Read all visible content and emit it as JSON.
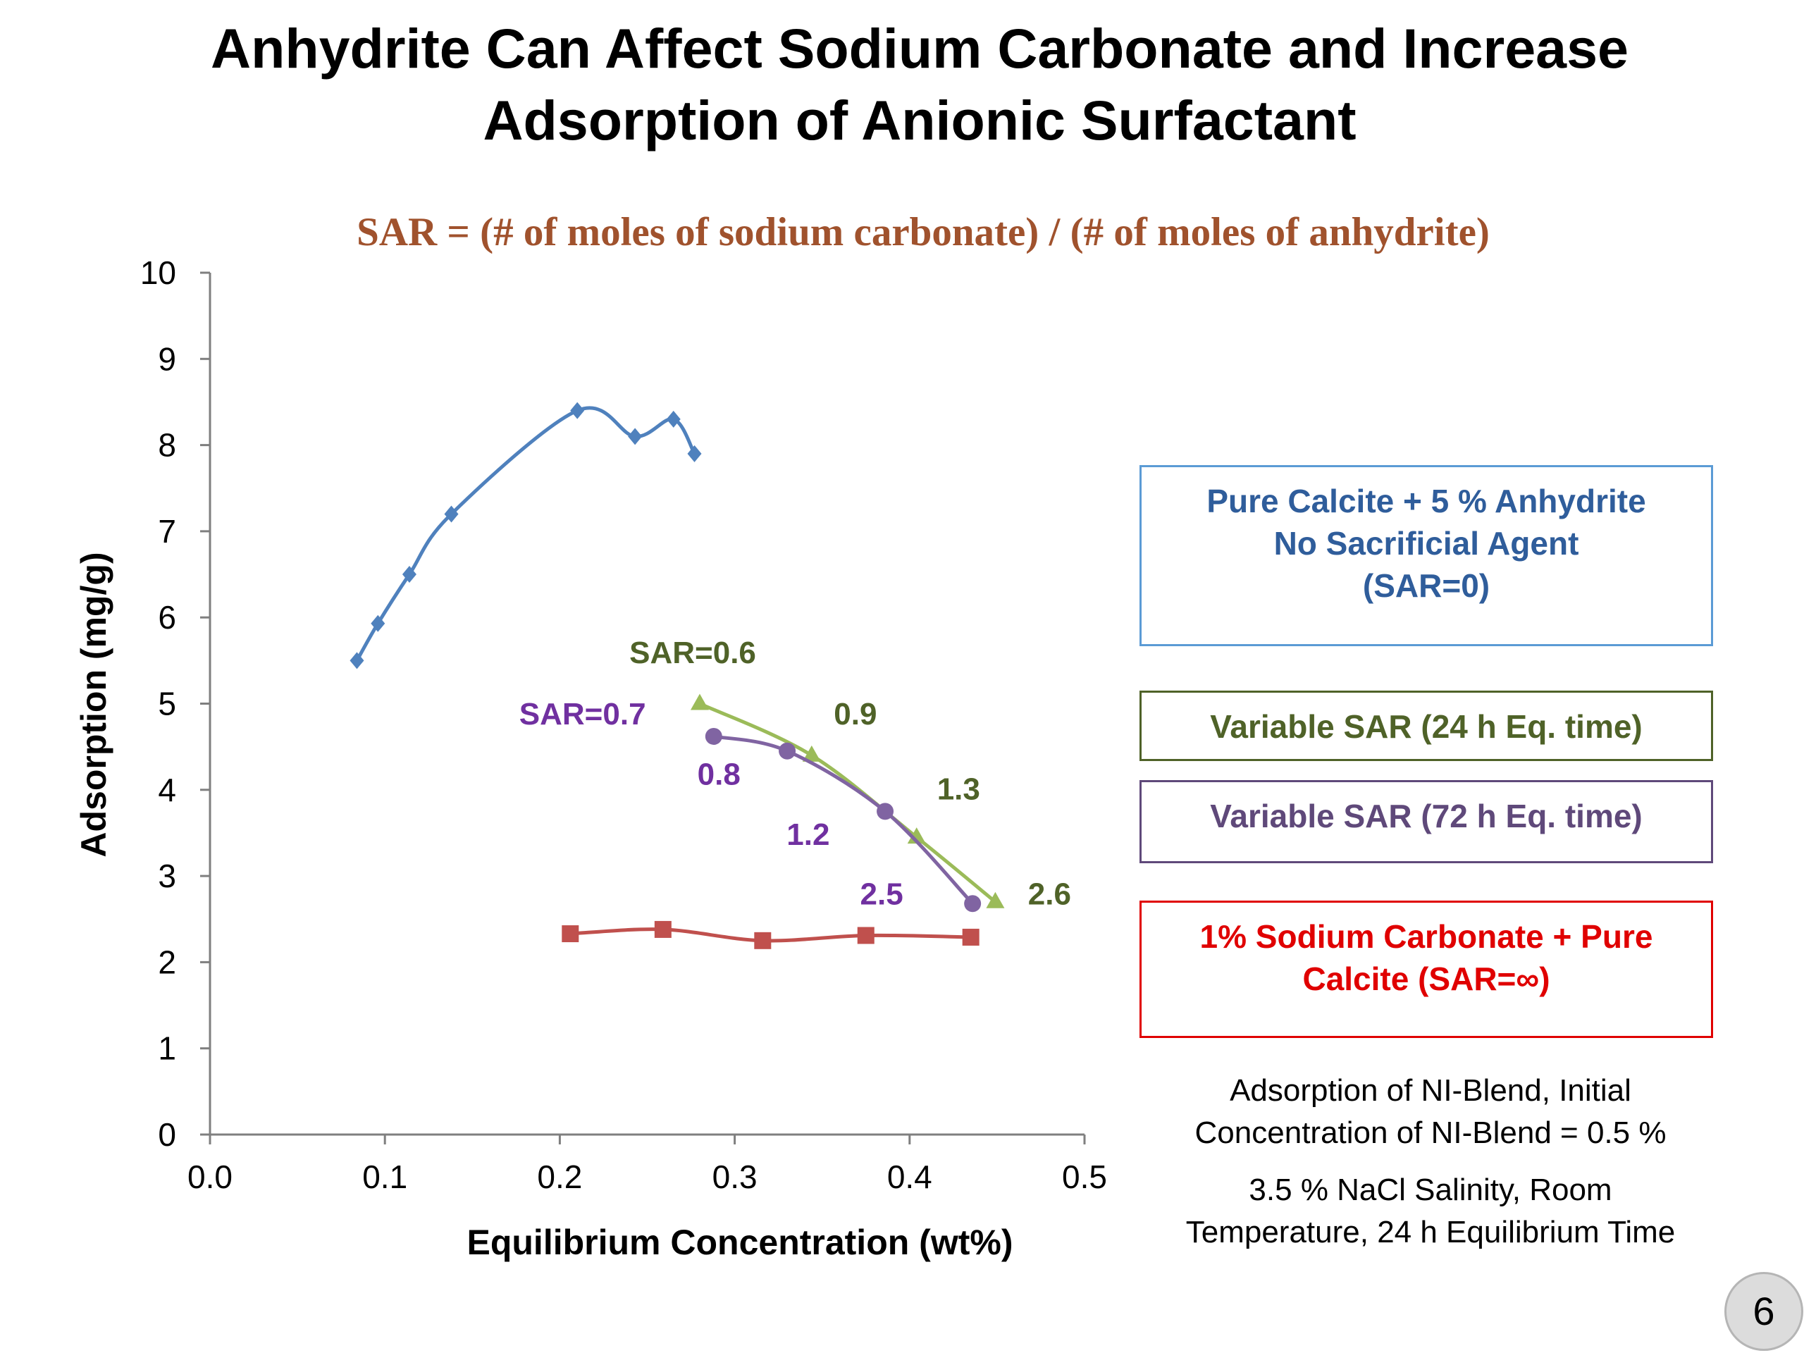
{
  "title_lines": [
    "Anhydrite Can Affect Sodium Carbonate and Increase",
    "Adsorption of Anionic Surfactant"
  ],
  "page_number": "6",
  "colors": {
    "blue": "#4f81bd",
    "green": "#9bbb59",
    "purple": "#8064a2",
    "red": "#c0504d",
    "subtitle": "#a0522d",
    "green_text": "#4f6228",
    "purple_text": "#7030a0",
    "blue_legend_text": "#2f5d9b",
    "red_legend_text": "#e00000"
  },
  "legend": [
    {
      "lines": [
        "Pure Calcite + 5 % Anhydrite",
        "No Sacrificial Agent",
        "(SAR=0)"
      ],
      "border": "#5b9bd5",
      "text_color": "#2f5d9b"
    },
    {
      "lines": [
        "Variable SAR (24 h Eq. time)"
      ],
      "border": "#4f6228",
      "text_color": "#4f6228"
    },
    {
      "lines": [
        "Variable SAR (72 h Eq. time)"
      ],
      "border": "#5f497a",
      "text_color": "#5f497a"
    },
    {
      "lines": [
        "1% Sodium Carbonate + Pure",
        "Calcite (SAR=∞)"
      ],
      "border": "#e00000",
      "text_color": "#e00000"
    }
  ],
  "notes": [
    [
      "Adsorption of NI-Blend, Initial",
      "Concentration of NI-Blend = 0.5 %"
    ],
    [
      "3.5 % NaCl Salinity, Room",
      "Temperature, 24 h Equilibrium Time"
    ]
  ],
  "chart_data": {
    "type": "scatter",
    "subtitle": "SAR = (# of moles of sodium carbonate) / (# of moles of anhydrite)",
    "xlabel": "Equilibrium Concentration (wt%)",
    "ylabel": "Adsorption (mg/g)",
    "xlim": [
      0,
      0.5
    ],
    "ylim": [
      0,
      10
    ],
    "xticks": [
      "0.0",
      "0.1",
      "0.2",
      "0.3",
      "0.4",
      "0.5"
    ],
    "yticks": [
      "0",
      "1",
      "2",
      "3",
      "4",
      "5",
      "6",
      "7",
      "8",
      "9",
      "10"
    ],
    "series": [
      {
        "name": "Pure Calcite + 5 % Anhydrite No Sacrificial Agent (SAR=0)",
        "color": "#4f81bd",
        "marker": "diamond",
        "x": [
          0.084,
          0.096,
          0.114,
          0.138,
          0.21,
          0.243,
          0.265,
          0.277
        ],
        "y": [
          5.5,
          5.93,
          6.5,
          7.2,
          8.4,
          8.1,
          8.3,
          7.9
        ]
      },
      {
        "name": "Variable SAR (24 h Eq. time)",
        "color": "#9bbb59",
        "marker": "triangle",
        "x": [
          0.28,
          0.344,
          0.404,
          0.449
        ],
        "y": [
          5.0,
          4.4,
          3.45,
          2.7
        ]
      },
      {
        "name": "Variable SAR (72 h Eq. time)",
        "color": "#8064a2",
        "marker": "circle",
        "x": [
          0.288,
          0.33,
          0.386,
          0.436
        ],
        "y": [
          4.62,
          4.45,
          3.75,
          2.68
        ]
      },
      {
        "name": "1% Sodium Carbonate + Pure Calcite (SAR=∞)",
        "color": "#c0504d",
        "marker": "square",
        "x": [
          0.206,
          0.259,
          0.316,
          0.375,
          0.435
        ],
        "y": [
          2.33,
          2.38,
          2.25,
          2.31,
          2.29
        ]
      }
    ],
    "annotations": [
      {
        "text": "SAR=0.6",
        "x": 0.276,
        "y": 5.47,
        "color": "#4f6228"
      },
      {
        "text": "0.9",
        "x": 0.369,
        "y": 4.76,
        "color": "#4f6228"
      },
      {
        "text": "1.3",
        "x": 0.428,
        "y": 3.89,
        "color": "#4f6228"
      },
      {
        "text": "2.6",
        "x": 0.48,
        "y": 2.67,
        "color": "#4f6228"
      },
      {
        "text": "SAR=0.7",
        "x": 0.213,
        "y": 4.76,
        "color": "#7030a0"
      },
      {
        "text": "0.8",
        "x": 0.291,
        "y": 4.06,
        "color": "#7030a0"
      },
      {
        "text": "1.2",
        "x": 0.342,
        "y": 3.36,
        "color": "#7030a0"
      },
      {
        "text": "2.5",
        "x": 0.384,
        "y": 2.67,
        "color": "#7030a0"
      }
    ],
    "grid": false
  }
}
